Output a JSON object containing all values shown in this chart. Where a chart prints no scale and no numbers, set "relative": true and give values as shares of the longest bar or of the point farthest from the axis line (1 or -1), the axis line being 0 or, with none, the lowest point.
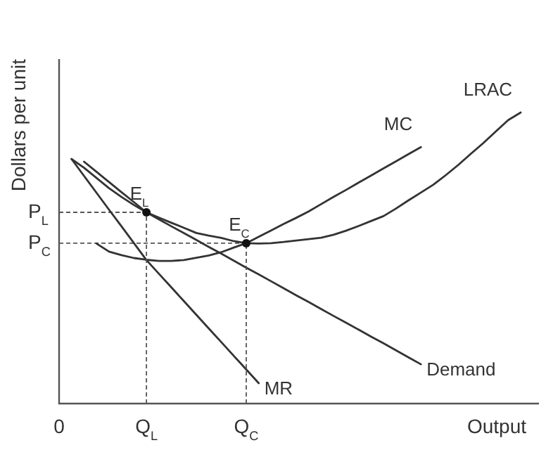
{
  "chart_data": {
    "type": "line",
    "relative": true,
    "xlabel": "Output",
    "ylabel": "Dollars per unit",
    "legend": false,
    "grid": false,
    "marker": "none",
    "line_style": "solid",
    "categories": [
      "0",
      null,
      null,
      null,
      null,
      null,
      null,
      "Q$_{L}$",
      null,
      null,
      null,
      null,
      null,
      null,
      null,
      "Q$_{C}$",
      null,
      null,
      null,
      null,
      null,
      null,
      null,
      null,
      null,
      null,
      null,
      null,
      null,
      null,
      null,
      null,
      null,
      null,
      null,
      null,
      null,
      null,
      null
    ],
    "series": [
      {
        "name": "LRAC",
        "color": "#333333",
        "values": [
          null,
          0.84,
          0.81,
          0.775,
          0.74,
          0.71,
          0.682,
          0.657,
          0.639,
          0.621,
          0.604,
          0.586,
          0.577,
          0.569,
          0.558,
          0.551,
          0.55,
          0.551,
          0.555,
          0.56,
          0.565,
          0.57,
          0.58,
          0.594,
          0.61,
          0.627,
          0.644,
          0.67,
          0.698,
          0.725,
          0.752,
          0.785,
          0.82,
          0.858,
          0.895,
          0.935,
          0.974,
          1,
          null
        ]
      },
      {
        "name": "MC",
        "color": "#333333",
        "values": [
          null,
          null,
          null,
          0.55,
          0.522,
          0.51,
          0.5,
          0.494,
          0.49,
          0.49,
          0.493,
          0.501,
          0.509,
          0.52,
          0.536,
          0.551,
          0.573,
          0.595,
          0.617,
          0.638,
          0.66,
          0.685,
          0.71,
          0.734,
          0.759,
          0.783,
          0.808,
          0.832,
          0.857,
          0.881,
          null,
          null,
          null,
          null,
          null,
          null,
          null,
          null,
          null
        ]
      },
      {
        "name": "Demand",
        "color": "#333333",
        "values": [
          null,
          null,
          0.831,
          0.796,
          0.761,
          0.726,
          0.692,
          0.657,
          0.633,
          0.609,
          0.586,
          0.562,
          0.538,
          0.515,
          0.491,
          0.467,
          0.444,
          0.42,
          0.396,
          0.372,
          0.349,
          0.325,
          0.301,
          0.278,
          0.254,
          0.23,
          0.207,
          0.183,
          0.159,
          0.135,
          null,
          null,
          null,
          null,
          null,
          null,
          null,
          null,
          null
        ]
      },
      {
        "name": "MR",
        "color": "#333333",
        "values": [
          null,
          0.84,
          0.782,
          0.724,
          0.666,
          0.609,
          0.551,
          0.493,
          0.446,
          0.399,
          0.352,
          0.305,
          0.258,
          0.211,
          0.164,
          0.117,
          0.07,
          null,
          null,
          null,
          null,
          null,
          null,
          null,
          null,
          null,
          null,
          null,
          null,
          null,
          null,
          null,
          null,
          null,
          null,
          null,
          null,
          null,
          null
        ]
      }
    ],
    "annotations": [
      {
        "text": "E$_{L}$",
        "x": "Q$_{L}$",
        "y": 0.657
      },
      {
        "text": "E$_{C}$",
        "x": "Q$_{C}$",
        "y": 0.551
      }
    ],
    "ref_lines": [
      {
        "axis": "y",
        "value": 0.657,
        "label": "P$_{L}$",
        "line_style": "dashed"
      },
      {
        "axis": "y",
        "value": 0.551,
        "label": "P$_{C}$",
        "line_style": "dashed"
      }
    ]
  }
}
